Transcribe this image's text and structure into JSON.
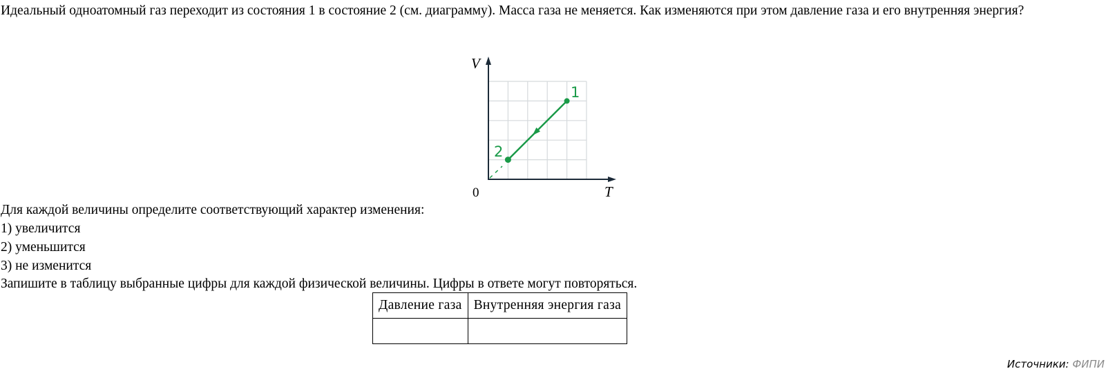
{
  "question": "Идеальный одноатомный газ переходит из состояния 1 в состояние 2 (см. диаграмму). Масса газа не меняется. Как изменяются при этом давление газа и его внутренняя энергия?",
  "diagram": {
    "axis_y": "V",
    "axis_x": "T",
    "origin": "0",
    "point1_label": "1",
    "point2_label": "2",
    "points": {
      "1": {
        "T": 4,
        "V": 4
      },
      "2": {
        "T": 1,
        "V": 1
      }
    },
    "direction": "1→2",
    "grid": {
      "cols": 5,
      "rows": 5
    },
    "line_color": "#1a9a48",
    "grid_color": "#d5d9dc",
    "axis_color": "#1b2a38"
  },
  "instruction": "Для каждой величины определите соответствующий характер изменения:",
  "options": [
    "1) увеличится",
    "2) уменьшится",
    "3) не изменится"
  ],
  "task": "Запишите в таблицу выбранные цифры для каждой физической величины. Цифры в ответе могут повторяться.",
  "table": {
    "headers": [
      "Давление газа",
      "Внутренняя энергия газа"
    ],
    "answers": [
      "",
      ""
    ]
  },
  "source": {
    "label": "Источники:",
    "value": "ФИПИ"
  }
}
